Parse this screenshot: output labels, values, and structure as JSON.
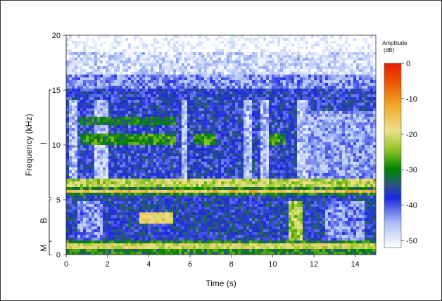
{
  "chart_data": {
    "type": "heatmap",
    "title": "",
    "xlabel": "Time (s)",
    "ylabel": "Frequency (kHz)",
    "xlim": [
      0,
      15
    ],
    "ylim": [
      0,
      20
    ],
    "x_ticks": [
      0,
      2,
      4,
      6,
      8,
      10,
      12,
      14
    ],
    "y_ticks": [
      0,
      5,
      10,
      15,
      20
    ],
    "grid": false,
    "bands": [
      {
        "label": "I",
        "range_khz": [
          5.2,
          15
        ]
      },
      {
        "label": "B",
        "range_khz": [
          1.2,
          5.0
        ]
      },
      {
        "label": "M",
        "range_khz": [
          0,
          1.2
        ]
      }
    ],
    "colorbar": {
      "title_line1": "Amplitude",
      "title_line2": "(dB)",
      "range_db": [
        -52,
        0
      ],
      "ticks": [
        0,
        -10,
        -20,
        -30,
        -40,
        -50
      ],
      "colors": [
        "#ffffff",
        "#0000dd",
        "#008800",
        "#f0e080",
        "#ee8800",
        "#ee2200"
      ],
      "legend_position": "right"
    },
    "highlights": [
      {
        "t": [
          0.7,
          5.3
        ],
        "f": [
          10.1,
          10.9
        ],
        "db": -29
      },
      {
        "t": [
          0.7,
          5.3
        ],
        "f": [
          11.7,
          12.5
        ],
        "db": -31
      },
      {
        "t": [
          6.1,
          7.2
        ],
        "f": [
          10.1,
          10.9
        ],
        "db": -29
      },
      {
        "t": [
          9.8,
          10.6
        ],
        "f": [
          10.1,
          10.9
        ],
        "db": -29
      },
      {
        "t": [
          0,
          15
        ],
        "f": [
          5.6,
          5.9
        ],
        "db": -15
      },
      {
        "t": [
          0,
          15
        ],
        "f": [
          6.2,
          6.8
        ],
        "db": -22
      },
      {
        "t": [
          0,
          15
        ],
        "f": [
          0.5,
          0.9
        ],
        "db": -20
      },
      {
        "t": [
          3.5,
          5.2
        ],
        "f": [
          2.9,
          3.8
        ],
        "db": -18
      },
      {
        "t": [
          10.8,
          11.4
        ],
        "f": [
          1.3,
          4.8
        ],
        "db": -23
      }
    ]
  }
}
